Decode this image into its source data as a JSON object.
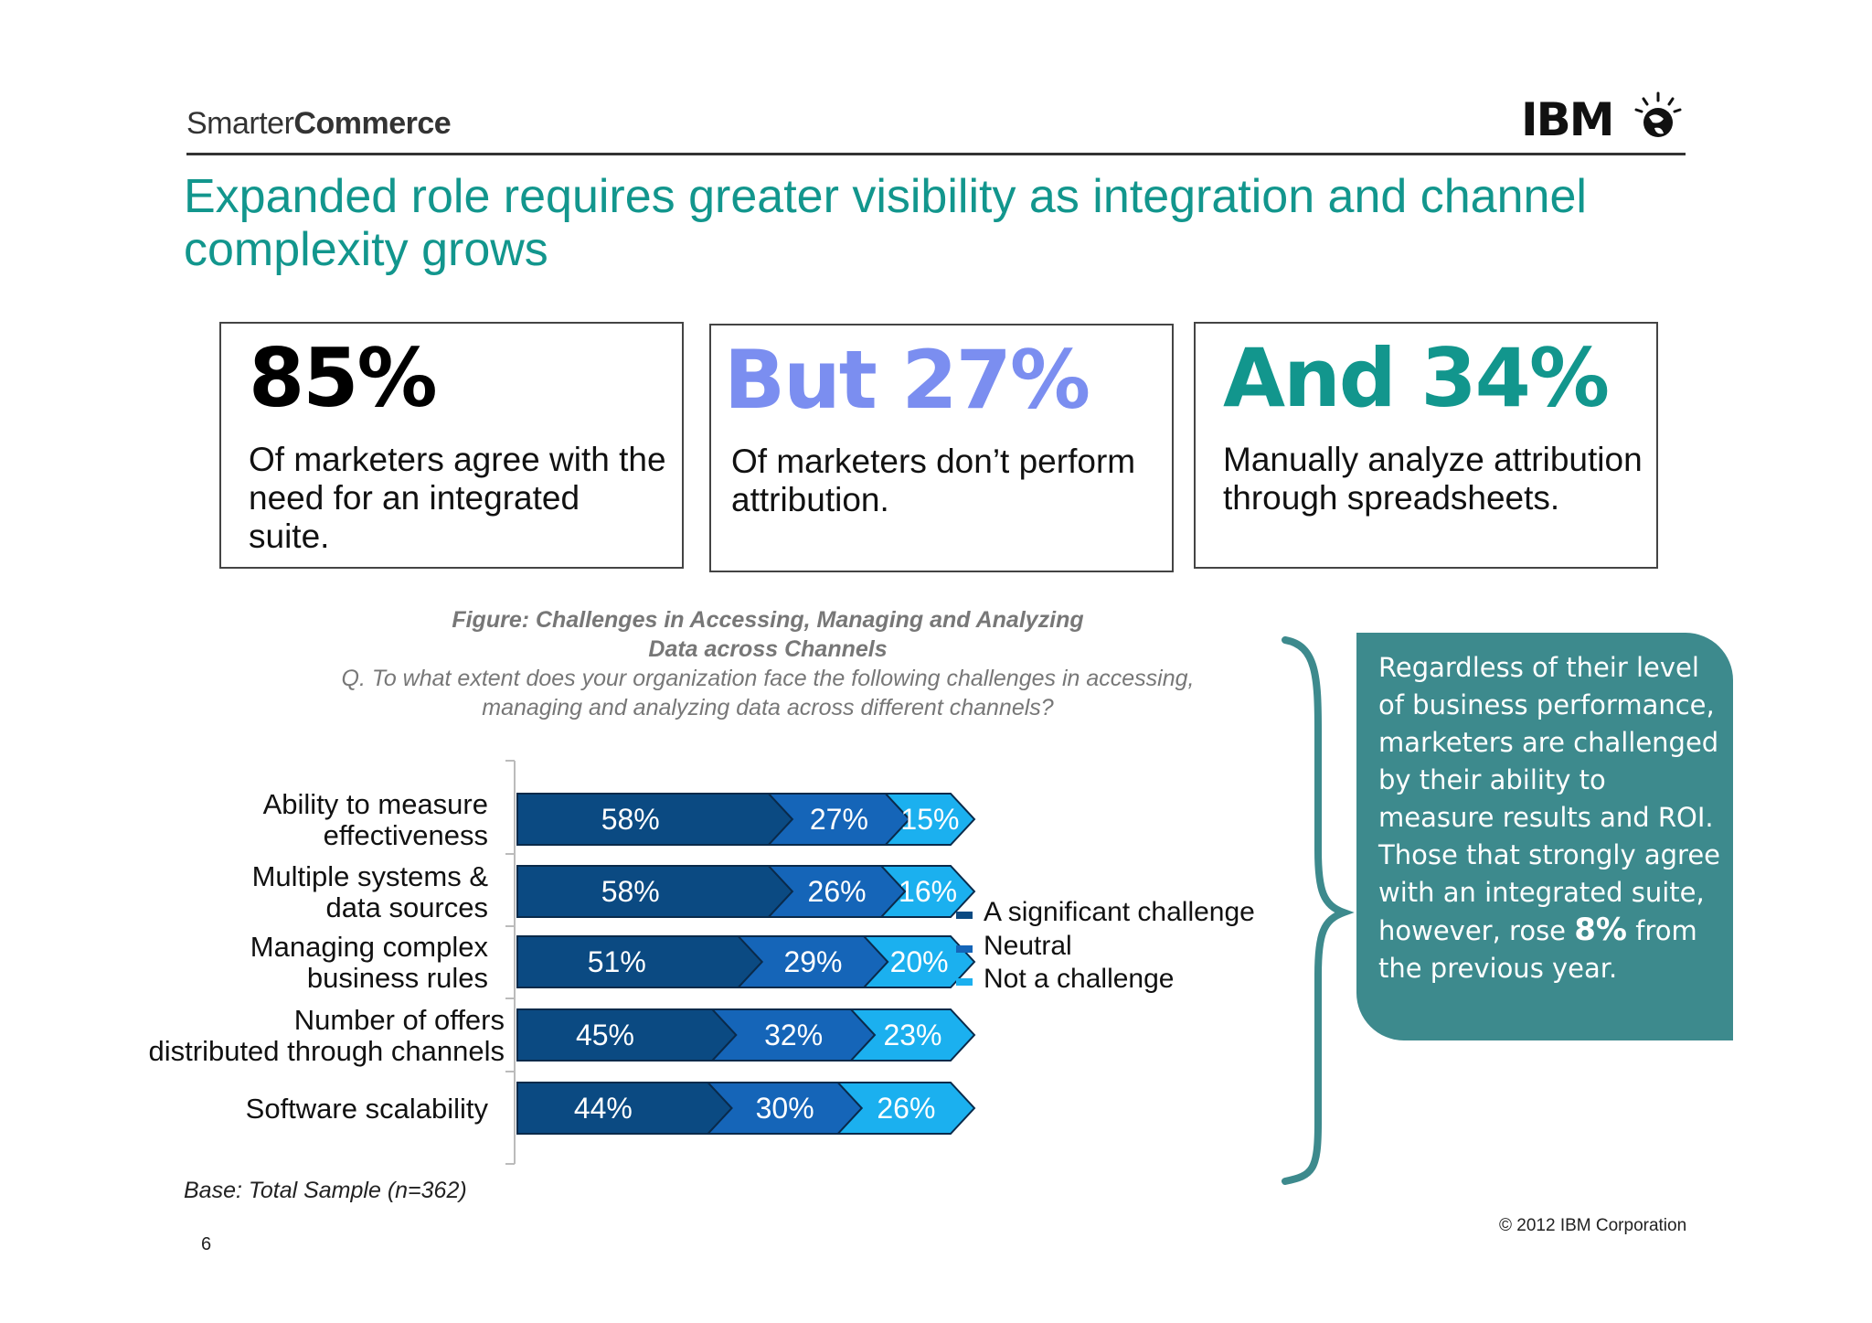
{
  "header": {
    "brand_light": "Smarter",
    "brand_bold": "Commerce",
    "logo_text": "IBM",
    "title": "Expanded role requires greater visibility as integration and channel complexity grows"
  },
  "stats": [
    {
      "big": "85%",
      "text": "Of marketers agree with the need for an integrated suite.",
      "color": "#000000"
    },
    {
      "big": "But 27%",
      "text": "Of marketers don’t perform attribution.",
      "color": "#7b8ef0"
    },
    {
      "big": "And 34%",
      "text": "Manually analyze attribution through spreadsheets.",
      "color": "#12968d"
    }
  ],
  "figure": {
    "title_line1": "Figure: Challenges in Accessing, Managing and Analyzing",
    "title_line2": "Data across Channels",
    "question_line1": "Q. To what extent does your organization face the following challenges in accessing,",
    "question_line2": "managing and analyzing data across different channels?"
  },
  "chart_data": {
    "type": "bar",
    "stacked": true,
    "orientation": "horizontal",
    "categories": [
      [
        "Ability to measure",
        "effectiveness"
      ],
      [
        "Multiple systems &",
        "data sources"
      ],
      [
        "Managing complex",
        "business rules"
      ],
      [
        "Number of offers",
        "distributed through channels"
      ],
      [
        "Software scalability"
      ]
    ],
    "series": [
      {
        "name": "A significant challenge",
        "values": [
          58,
          58,
          51,
          45,
          44
        ],
        "color": "#0b4a82"
      },
      {
        "name": "Neutral",
        "values": [
          27,
          26,
          29,
          32,
          30
        ],
        "color": "#1565b8"
      },
      {
        "name": "Not a challenge",
        "values": [
          15,
          16,
          20,
          23,
          26
        ],
        "color": "#1bb0ef"
      }
    ],
    "value_suffix": "%",
    "legend_position": "right"
  },
  "base_note": "Base: Total Sample (n=362)",
  "page_number": "6",
  "copyright": "© 2012 IBM Corporation",
  "callout": {
    "before": "Regardless of their level of business performance, marketers are challenged by their ability to measure results and ROI.   Those that strongly agree with an integrated suite, however, rose ",
    "highlight": "8%",
    "after": " from the previous year."
  }
}
